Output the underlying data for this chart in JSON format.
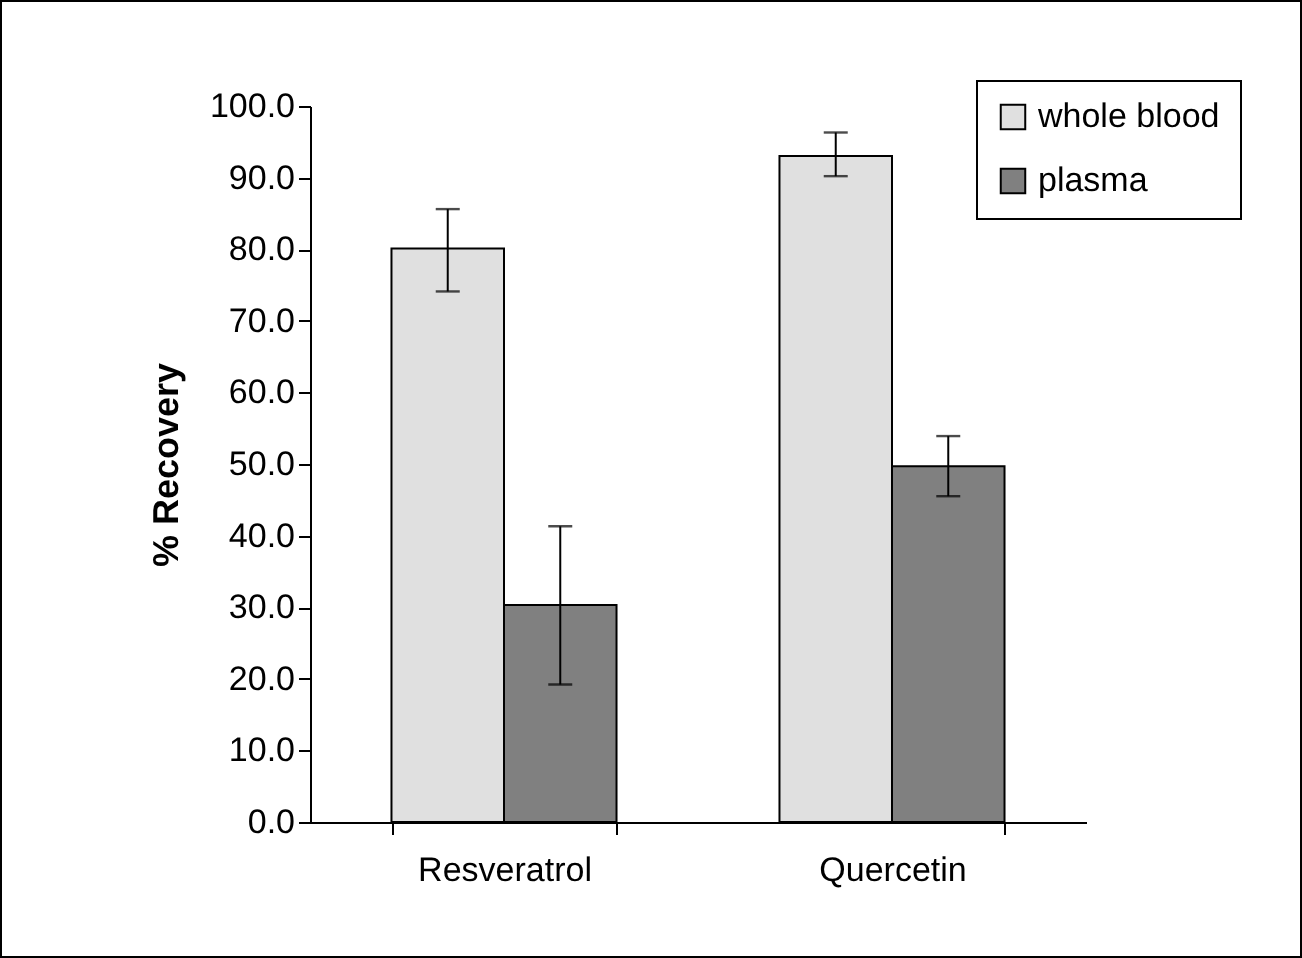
{
  "chart_data": {
    "type": "bar",
    "ylabel": "% Recovery",
    "categories": [
      "Resveratrol",
      "Quercetin"
    ],
    "series": [
      {
        "name": "whole blood",
        "color": "#e0e0e0",
        "values": [
          80.1,
          93.0
        ],
        "errors": [
          [
            74.1,
            85.6
          ],
          [
            90.2,
            96.3
          ]
        ]
      },
      {
        "name": "plasma",
        "color": "#808080",
        "values": [
          30.3,
          49.7
        ],
        "errors": [
          [
            19.2,
            41.3
          ],
          [
            45.5,
            53.9
          ]
        ]
      }
    ],
    "ylim": [
      0,
      100
    ],
    "yticks": [
      {
        "value": 0,
        "label": "0.0"
      },
      {
        "value": 10,
        "label": "10.0"
      },
      {
        "value": 20,
        "label": "20.0"
      },
      {
        "value": 30,
        "label": "30.0"
      },
      {
        "value": 40,
        "label": "40.0"
      },
      {
        "value": 50,
        "label": "50.0"
      },
      {
        "value": 60,
        "label": "60.0"
      },
      {
        "value": 70,
        "label": "70.0"
      },
      {
        "value": 80,
        "label": "80.0"
      },
      {
        "value": 90,
        "label": "90.0"
      },
      {
        "value": 100,
        "label": "100.0"
      }
    ],
    "grid": false,
    "legend": "top right"
  }
}
